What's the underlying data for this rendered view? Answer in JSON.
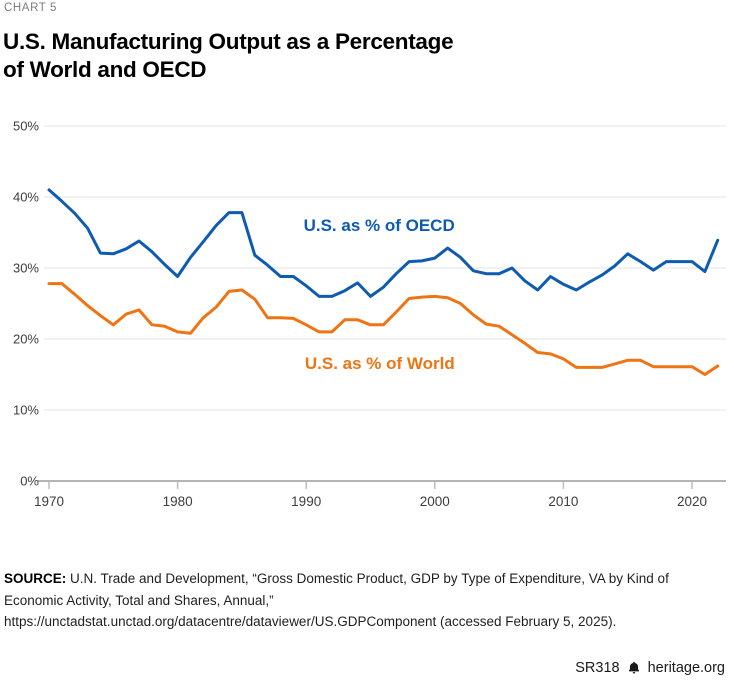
{
  "page": {
    "kicker": "CHART 5",
    "title_line1": "U.S. Manufacturing Output as a Percentage",
    "title_line2": "of World and OECD"
  },
  "chart_data": {
    "type": "line",
    "title": "U.S. Manufacturing Output as a Percentage of World and OECD",
    "xlabel": "",
    "ylabel": "",
    "grid": "horizontal",
    "legend_position": "inline-annotations",
    "ylim": [
      0,
      50
    ],
    "xlim": [
      1970,
      2022
    ],
    "y_ticks": [
      0,
      10,
      20,
      30,
      40,
      50
    ],
    "y_tick_labels": [
      "0%",
      "10%",
      "20%",
      "30%",
      "40%",
      "50%"
    ],
    "x_ticks": [
      1970,
      1980,
      1990,
      2000,
      2010,
      2020
    ],
    "x_tick_labels": [
      "1970",
      "1980",
      "1990",
      "2000",
      "2010",
      "2020"
    ],
    "x": [
      1970,
      1971,
      1972,
      1973,
      1974,
      1975,
      1976,
      1977,
      1978,
      1979,
      1980,
      1981,
      1982,
      1983,
      1984,
      1985,
      1986,
      1987,
      1988,
      1989,
      1990,
      1991,
      1992,
      1993,
      1994,
      1995,
      1996,
      1997,
      1998,
      1999,
      2000,
      2001,
      2002,
      2003,
      2004,
      2005,
      2006,
      2007,
      2008,
      2009,
      2010,
      2011,
      2012,
      2013,
      2014,
      2015,
      2016,
      2017,
      2018,
      2019,
      2020,
      2021,
      2022
    ],
    "series": [
      {
        "name": "U.S. as % of OECD",
        "color": "#0e5bb2",
        "values": [
          41.0,
          39.4,
          37.7,
          35.6,
          32.1,
          32.0,
          32.7,
          33.8,
          32.3,
          30.5,
          28.8,
          31.5,
          33.7,
          36.0,
          37.8,
          37.8,
          31.8,
          30.4,
          28.8,
          28.8,
          27.5,
          26.0,
          26.0,
          26.8,
          27.9,
          26.0,
          27.3,
          29.2,
          30.9,
          31.0,
          31.4,
          32.8,
          31.5,
          29.6,
          29.2,
          29.2,
          30.0,
          28.2,
          26.9,
          28.8,
          27.7,
          26.9,
          28.0,
          29.0,
          30.3,
          32.0,
          30.9,
          29.7,
          30.9,
          30.9,
          30.9,
          29.5,
          33.9
        ]
      },
      {
        "name": "U.S. as % of World",
        "color": "#ee7414",
        "values": [
          27.8,
          27.8,
          26.3,
          24.7,
          23.3,
          22.0,
          23.5,
          24.1,
          22.0,
          21.8,
          21.0,
          20.8,
          23.0,
          24.5,
          26.7,
          26.9,
          25.6,
          23.0,
          23.0,
          22.9,
          22.0,
          21.0,
          21.0,
          22.7,
          22.7,
          22.0,
          22.0,
          23.8,
          25.7,
          25.9,
          26.0,
          25.8,
          25.0,
          23.4,
          22.1,
          21.8,
          20.6,
          19.4,
          18.1,
          17.9,
          17.2,
          16.0,
          16.0,
          16.0,
          16.5,
          17.0,
          17.0,
          16.1,
          16.1,
          16.1,
          16.1,
          15.0,
          16.2
        ]
      }
    ],
    "annotations": [
      {
        "text": "U.S. as % of OECD",
        "color": "#0e5bb2",
        "x": 1989.8,
        "y": 35.2
      },
      {
        "text": "U.S. as % of World",
        "color": "#ee7414",
        "x": 1989.9,
        "y": 15.8
      }
    ]
  },
  "footer": {
    "source_label": "SOURCE:",
    "source_lines": [
      "U.N. Trade and Development, “Gross Domestic Product, GDP by Type of Expenditure, VA by Kind of",
      "Economic Activity, Total and Shares, Annual,”",
      "https://unctadstat.unctad.org/datacentre/dataviewer/US.GDPComponent (accessed February 5, 2025)."
    ],
    "report_id": "SR318",
    "brand": "heritage.org",
    "brand_icon": "liberty-bell-icon"
  }
}
